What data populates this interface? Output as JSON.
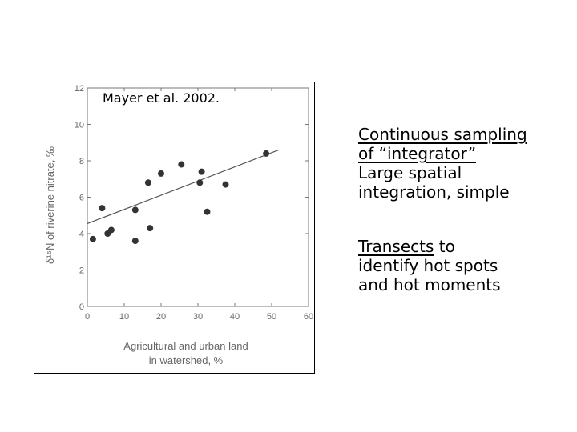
{
  "citation": "Mayer et al. 2002.",
  "side_text": {
    "block1": {
      "underlined_line1": "Continuous sampling",
      "underlined_line2": "of “integrator”",
      "line3": "Large spatial",
      "line4": "integration, simple"
    },
    "block2": {
      "underlined_word": "Transects",
      "line1_rest": " to",
      "line2": "identify hot spots",
      "line3": "and hot moments"
    }
  },
  "chart_data": {
    "type": "scatter",
    "xlabel_line1": "Agricultural and urban land",
    "xlabel_line2": "in watershed, %",
    "ylabel": "δ¹⁵N of riverine nitrate, ‰",
    "xlim": [
      0,
      60
    ],
    "ylim": [
      0,
      12
    ],
    "x_ticks": [
      0,
      10,
      20,
      30,
      40,
      50,
      60
    ],
    "y_ticks": [
      0,
      2,
      4,
      6,
      8,
      10,
      12
    ],
    "x_tick_labels": [
      "0",
      "10",
      "20",
      "30",
      "40",
      "50",
      "60"
    ],
    "y_tick_labels": [
      "0",
      "2",
      "4",
      "6",
      "8",
      "10",
      "12"
    ],
    "points": [
      [
        1.5,
        3.7
      ],
      [
        4.0,
        5.4
      ],
      [
        5.5,
        4.0
      ],
      [
        6.5,
        4.2
      ],
      [
        13.0,
        5.3
      ],
      [
        13.0,
        3.6
      ],
      [
        16.5,
        6.8
      ],
      [
        17.0,
        4.3
      ],
      [
        20.0,
        7.3
      ],
      [
        25.5,
        7.8
      ],
      [
        30.5,
        6.8
      ],
      [
        31.0,
        7.4
      ],
      [
        32.5,
        5.2
      ],
      [
        37.5,
        6.7
      ],
      [
        48.5,
        8.4
      ]
    ],
    "regression_line": {
      "x": [
        0,
        52
      ],
      "y": [
        4.55,
        8.6
      ]
    },
    "marker_color": "#333333",
    "line_color": "#555555"
  }
}
